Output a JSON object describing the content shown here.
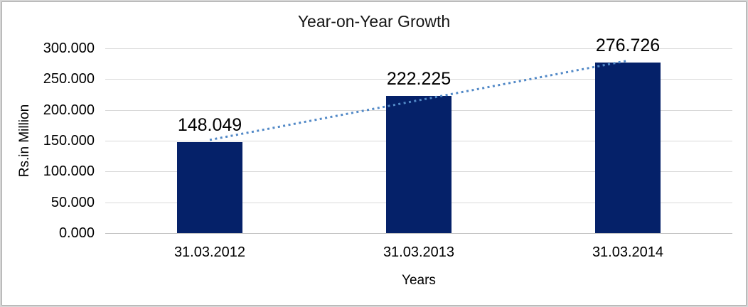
{
  "chart_data": {
    "type": "bar",
    "title": "Year-on-Year Growth",
    "xlabel": "Years",
    "ylabel": "Rs.in Million",
    "categories": [
      "31.03.2012",
      "31.03.2013",
      "31.03.2014"
    ],
    "values": [
      148.049,
      222.225,
      276.726
    ],
    "value_labels": [
      "148.049",
      "222.225",
      "276.726"
    ],
    "ylim": [
      0,
      300
    ],
    "yticks": [
      {
        "value": 0,
        "label": "0.000"
      },
      {
        "value": 50,
        "label": "50.000"
      },
      {
        "value": 100,
        "label": "100.000"
      },
      {
        "value": 150,
        "label": "150.000"
      },
      {
        "value": 200,
        "label": "200.000"
      },
      {
        "value": 250,
        "label": "250.000"
      },
      {
        "value": 300,
        "label": "300.000"
      }
    ],
    "grid": "horizontal",
    "legend": "none",
    "bar_color": "#052169",
    "trendline": {
      "type": "linear",
      "style": "dotted",
      "color": "#5289c7"
    }
  }
}
